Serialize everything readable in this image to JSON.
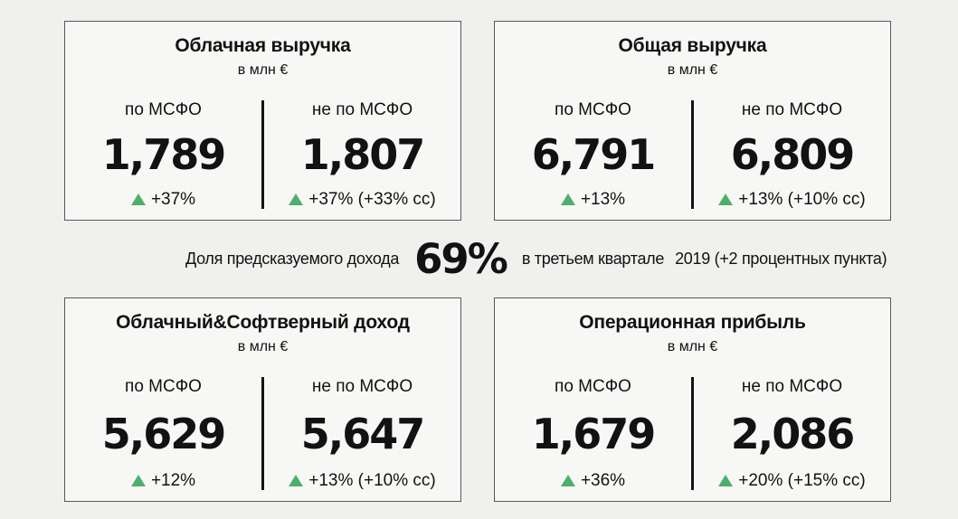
{
  "colors": {
    "background": "#f0f0ee",
    "card_background": "#f7f7f5",
    "card_border": "#58585a",
    "text": "#121212",
    "divider": "#141414",
    "up_green": "#4caf6a"
  },
  "share_line": {
    "label": "Доля предсказуемого дохода",
    "value": "69%",
    "period": "в третьем квартале",
    "note": "2019 (+2 процентных пункта)"
  },
  "cards": [
    {
      "title": "Облачная выручка",
      "subtitle": "в млн €",
      "ifrs": {
        "label": "по МСФО",
        "value": "1,789",
        "change": "+37%"
      },
      "non_ifrs": {
        "label": "не по МСФО",
        "value": "1,807",
        "change": "+37% (+33% cc)"
      }
    },
    {
      "title": "Общая выручка",
      "subtitle": "в млн €",
      "ifrs": {
        "label": "по МСФО",
        "value": "6,791",
        "change": "+13%"
      },
      "non_ifrs": {
        "label": "не по МСФО",
        "value": "6,809",
        "change": "+13% (+10% cc)"
      }
    },
    {
      "title": "Облачный&Софтверный доход",
      "subtitle": "в млн €",
      "ifrs": {
        "label": "по МСФО",
        "value": "5,629",
        "change": "+12%"
      },
      "non_ifrs": {
        "label": "не по МСФО",
        "value": "5,647",
        "change": "+13% (+10% cc)"
      }
    },
    {
      "title": "Операционная прибыль",
      "subtitle": "в млн €",
      "ifrs": {
        "label": "по МСФО",
        "value": "1,679",
        "change": "+36%"
      },
      "non_ifrs": {
        "label": "не по МСФО",
        "value": "2,086",
        "change": "+20% (+15% cc)"
      }
    }
  ],
  "chart_data": {
    "type": "table",
    "unit": "в млн €",
    "columns": [
      "метрика",
      "по МСФО",
      "изменение по МСФО %",
      "не по МСФО",
      "изменение не по МСФО %",
      "изменение cc %"
    ],
    "rows": [
      [
        "Облачная выручка",
        1789,
        37,
        1807,
        37,
        33
      ],
      [
        "Общая выручка",
        6791,
        13,
        6809,
        13,
        10
      ],
      [
        "Облачный&Софтверный доход",
        5629,
        12,
        5647,
        13,
        10
      ],
      [
        "Операционная прибыль",
        1679,
        36,
        2086,
        20,
        15
      ]
    ],
    "annotations": [
      "Доля предсказуемого дохода 69% в третьем квартале 2019 (+2 процентных пункта)"
    ],
    "share_of_predictable_revenue_pct": 69,
    "share_change_pp": 2
  }
}
